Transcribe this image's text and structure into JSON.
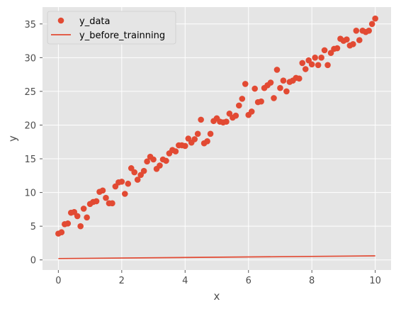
{
  "chart_data": {
    "type": "scatter",
    "title": "",
    "xlabel": "x",
    "ylabel": "y",
    "xlim": [
      -0.5,
      10.5
    ],
    "ylim": [
      -1.5,
      37.5
    ],
    "xticks": [
      0,
      2,
      4,
      6,
      8,
      10
    ],
    "yticks": [
      0,
      5,
      10,
      15,
      20,
      25,
      30,
      35
    ],
    "grid": true,
    "background": "#e5e5e5",
    "grid_color": "#ffffff",
    "legend_position": "upper-left",
    "series": [
      {
        "name": "y_data",
        "kind": "scatter",
        "color": "#e24a33",
        "points": [
          [
            0.0,
            3.9
          ],
          [
            0.1,
            4.1
          ],
          [
            0.2,
            5.3
          ],
          [
            0.3,
            5.4
          ],
          [
            0.4,
            7.0
          ],
          [
            0.5,
            7.1
          ],
          [
            0.6,
            6.5
          ],
          [
            0.7,
            5.0
          ],
          [
            0.8,
            7.6
          ],
          [
            0.9,
            6.3
          ],
          [
            1.0,
            8.3
          ],
          [
            1.1,
            8.6
          ],
          [
            1.2,
            8.7
          ],
          [
            1.3,
            10.1
          ],
          [
            1.4,
            10.3
          ],
          [
            1.5,
            9.2
          ],
          [
            1.6,
            8.4
          ],
          [
            1.7,
            8.4
          ],
          [
            1.8,
            10.9
          ],
          [
            1.9,
            11.5
          ],
          [
            2.0,
            11.6
          ],
          [
            2.1,
            9.8
          ],
          [
            2.2,
            11.3
          ],
          [
            2.3,
            13.6
          ],
          [
            2.4,
            13.0
          ],
          [
            2.5,
            11.9
          ],
          [
            2.6,
            12.6
          ],
          [
            2.7,
            13.2
          ],
          [
            2.8,
            14.6
          ],
          [
            2.9,
            15.3
          ],
          [
            3.0,
            14.9
          ],
          [
            3.1,
            13.5
          ],
          [
            3.2,
            14.0
          ],
          [
            3.3,
            14.9
          ],
          [
            3.4,
            14.7
          ],
          [
            3.5,
            15.8
          ],
          [
            3.6,
            16.3
          ],
          [
            3.7,
            16.1
          ],
          [
            3.8,
            17.0
          ],
          [
            3.9,
            17.0
          ],
          [
            4.0,
            16.9
          ],
          [
            4.1,
            18.0
          ],
          [
            4.2,
            17.4
          ],
          [
            4.3,
            17.9
          ],
          [
            4.4,
            18.7
          ],
          [
            4.5,
            20.8
          ],
          [
            4.6,
            17.3
          ],
          [
            4.7,
            17.6
          ],
          [
            4.8,
            18.7
          ],
          [
            4.9,
            20.6
          ],
          [
            5.0,
            21.0
          ],
          [
            5.1,
            20.5
          ],
          [
            5.2,
            20.4
          ],
          [
            5.3,
            20.5
          ],
          [
            5.4,
            21.7
          ],
          [
            5.5,
            21.1
          ],
          [
            5.6,
            21.4
          ],
          [
            5.7,
            22.9
          ],
          [
            5.8,
            23.9
          ],
          [
            5.9,
            26.1
          ],
          [
            6.0,
            21.5
          ],
          [
            6.1,
            22.0
          ],
          [
            6.2,
            25.4
          ],
          [
            6.3,
            23.4
          ],
          [
            6.4,
            23.5
          ],
          [
            6.5,
            25.5
          ],
          [
            6.6,
            25.9
          ],
          [
            6.7,
            26.3
          ],
          [
            6.8,
            24.0
          ],
          [
            6.9,
            28.2
          ],
          [
            7.0,
            25.5
          ],
          [
            7.1,
            26.6
          ],
          [
            7.2,
            25.0
          ],
          [
            7.3,
            26.4
          ],
          [
            7.4,
            26.6
          ],
          [
            7.5,
            27.0
          ],
          [
            7.6,
            26.9
          ],
          [
            7.7,
            29.2
          ],
          [
            7.8,
            28.3
          ],
          [
            7.9,
            29.6
          ],
          [
            8.0,
            29.0
          ],
          [
            8.1,
            30.0
          ],
          [
            8.2,
            28.9
          ],
          [
            8.3,
            30.0
          ],
          [
            8.4,
            31.1
          ],
          [
            8.5,
            28.9
          ],
          [
            8.6,
            30.7
          ],
          [
            8.7,
            31.3
          ],
          [
            8.8,
            31.4
          ],
          [
            8.9,
            32.8
          ],
          [
            9.0,
            32.5
          ],
          [
            9.1,
            32.7
          ],
          [
            9.2,
            31.8
          ],
          [
            9.3,
            32.0
          ],
          [
            9.4,
            34.0
          ],
          [
            9.5,
            32.6
          ],
          [
            9.6,
            34.0
          ],
          [
            9.7,
            33.8
          ],
          [
            9.8,
            34.0
          ],
          [
            9.9,
            35.0
          ],
          [
            10.0,
            35.8
          ]
        ]
      },
      {
        "name": "y_before_trainning",
        "kind": "line",
        "color": "#e24a33",
        "points": [
          [
            0.0,
            0.2
          ],
          [
            10.0,
            0.6
          ]
        ]
      }
    ]
  }
}
